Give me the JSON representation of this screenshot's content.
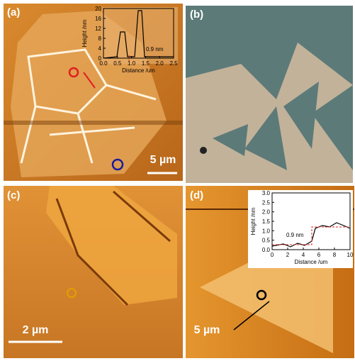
{
  "panels": [
    {
      "label": "(a)",
      "scale_bar": "5 µm",
      "inset": {
        "y_label": "Height /nm",
        "x_label": "Distance /um",
        "y_ticks": [
          "0",
          "4",
          "8",
          "12",
          "16",
          "20"
        ],
        "x_ticks": [
          "0.0",
          "0.5",
          "1.0",
          "1.5",
          "2.0",
          "2.5"
        ],
        "annotation": "0.9 nm"
      }
    },
    {
      "label": "(b)"
    },
    {
      "label": "(c)",
      "scale_bar": "2 µm"
    },
    {
      "label": "(d)",
      "scale_bar": "5 µm",
      "inset": {
        "y_label": "Height /nm",
        "x_label": "Distance /um",
        "y_ticks": [
          "0.0",
          "0.5",
          "1.0",
          "1.5",
          "2.0",
          "2.5",
          "3.0"
        ],
        "x_ticks": [
          "0",
          "2",
          "4",
          "6",
          "8",
          "10"
        ],
        "annotation": "0.9 nm"
      }
    }
  ]
}
